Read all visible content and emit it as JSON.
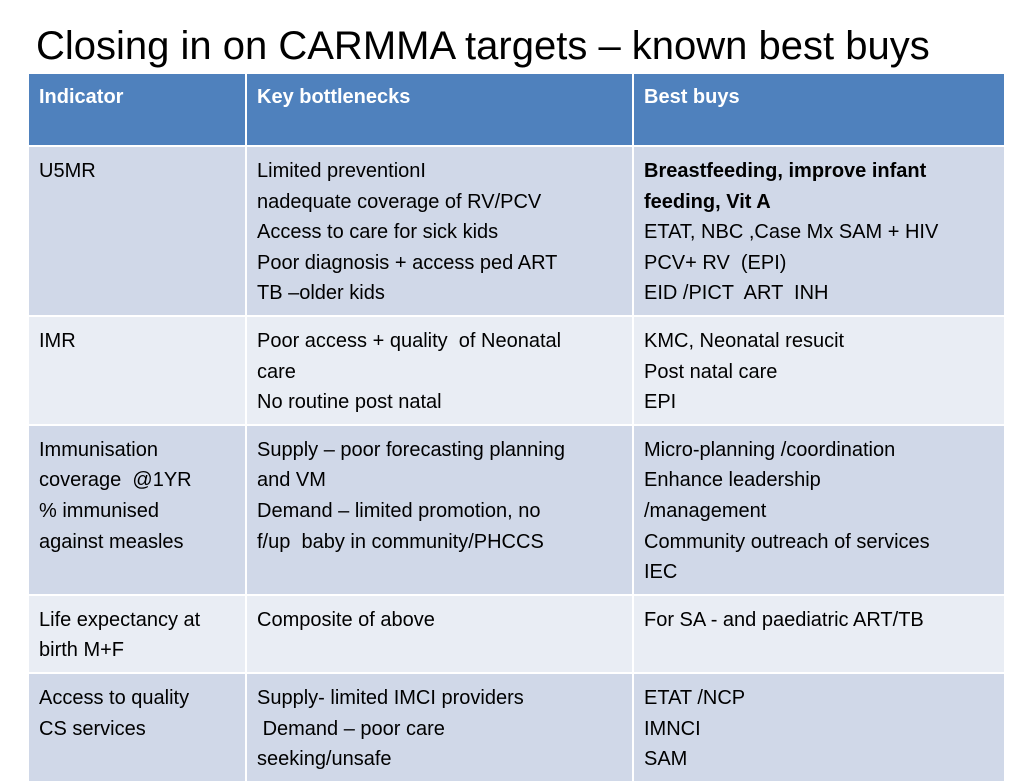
{
  "title": "Closing in on CARMMA targets – known best buys",
  "headers": [
    "Indicator",
    "Key bottlenecks",
    "Best buys"
  ],
  "rows": [
    {
      "indicator": [
        "U5MR"
      ],
      "bottlenecks": [
        "Limited preventionI",
        "nadequate coverage of RV/PCV",
        "Access to care for sick kids",
        "Poor diagnosis + access ped ART",
        "TB –older kids"
      ],
      "best_buys_bold": [
        "Breastfeeding, improve infant",
        "feeding, Vit A"
      ],
      "best_buys": [
        "ETAT, NBC ,Case Mx SAM + HIV",
        "PCV+ RV  (EPI)",
        "EID /PICT  ART  INH"
      ]
    },
    {
      "indicator": [
        "IMR"
      ],
      "bottlenecks": [
        "Poor access + quality  of Neonatal",
        "care",
        "No routine post natal"
      ],
      "best_buys": [
        "KMC, Neonatal resucit",
        "Post natal care",
        "EPI"
      ]
    },
    {
      "indicator": [
        "Immunisation",
        "coverage  @1YR",
        "% immunised",
        "against measles"
      ],
      "bottlenecks": [
        "Supply – poor forecasting planning",
        "and VM",
        "Demand – limited promotion, no",
        "f/up  baby in community/PHCCS"
      ],
      "best_buys": [
        "Micro-planning /coordination",
        "Enhance leadership",
        "/management",
        "Community outreach of services",
        "IEC"
      ]
    },
    {
      "indicator": [
        "Life expectancy at",
        "birth M+F"
      ],
      "bottlenecks": [
        "Composite of above"
      ],
      "best_buys": [
        "For SA - and paediatric ART/TB"
      ]
    },
    {
      "indicator": [
        "Access to quality",
        "CS services"
      ],
      "bottlenecks": [
        "Supply- limited IMCI providers",
        " Demand – poor care",
        "seeking/unsafe"
      ],
      "best_buys": [
        "ETAT /NCP",
        "IMNCI",
        "SAM"
      ]
    }
  ]
}
